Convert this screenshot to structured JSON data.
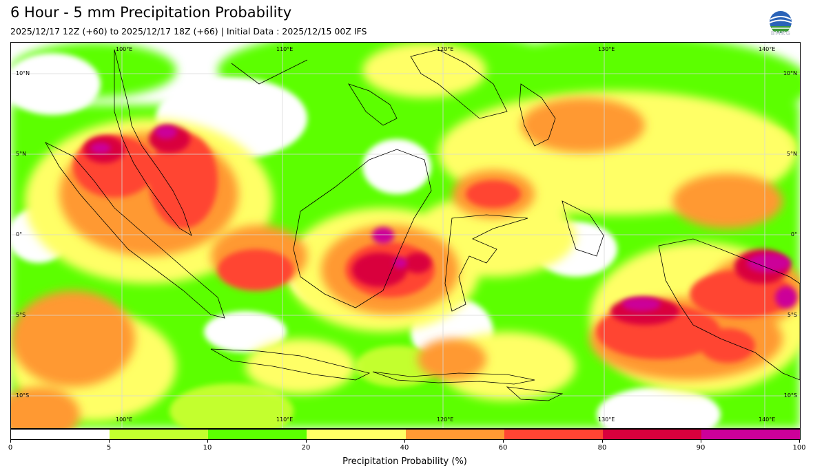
{
  "header": {
    "title": "6 Hour - 5 mm Precipitation Probability",
    "subtitle": "2025/12/17 12Z (+60) to 2025/12/17 18Z (+66) | Initial Data : 2025/12/15 00Z IFS",
    "logo_text": "BMKG"
  },
  "map": {
    "lon_labels": [
      "100°E",
      "110°E",
      "120°E",
      "130°E",
      "140°E"
    ],
    "lat_labels": [
      "10°N",
      "5°N",
      "0°",
      "5°S",
      "10°S"
    ]
  },
  "colorbar": {
    "title": "Precipitation Probability (%)",
    "ticks": [
      "0",
      "5",
      "10",
      "20",
      "40",
      "60",
      "80",
      "90",
      "100"
    ],
    "colors": [
      "#ffffff",
      "#c3ff2e",
      "#5cff00",
      "#ffff66",
      "#ff9933",
      "#ff4433",
      "#d9003d",
      "#cc0099"
    ]
  }
}
